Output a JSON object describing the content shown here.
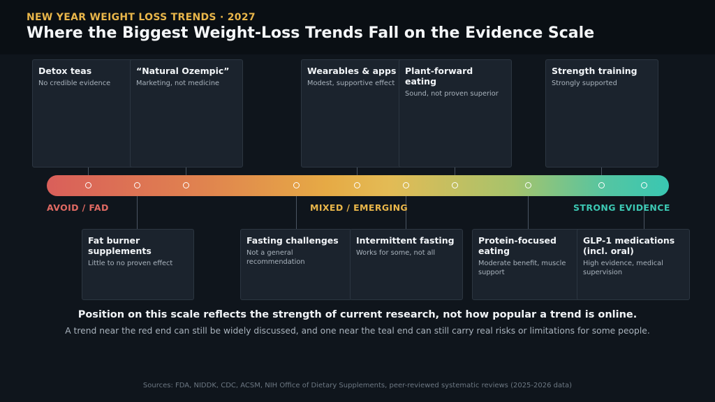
{
  "header": {
    "eyebrow": "NEW YEAR WEIGHT LOSS TRENDS · 2027",
    "title": "Where the Biggest Weight-Loss Trends Fall on the Evidence Scale"
  },
  "scale": {
    "labels": {
      "low": "AVOID / FAD",
      "mid": "MIXED / EMERGING",
      "high": "STRONG EVIDENCE"
    },
    "colors": {
      "low": "#d95f5a",
      "mid": "#e6aa45",
      "high": "#39c7b2"
    }
  },
  "trends": {
    "detox_teas": {
      "title": "Detox teas",
      "note": "No credible evidence"
    },
    "fat_burners": {
      "title": "Fat burner supplements",
      "note": "Little to no proven effect"
    },
    "natural_ozempic": {
      "title": "“Natural Ozempic”",
      "note": "Marketing, not medicine"
    },
    "fasting_challenges": {
      "title": "Fasting challenges",
      "note": "Not a general recommendation"
    },
    "wearables": {
      "title": "Wearables & apps",
      "note": "Modest, supportive effect"
    },
    "intermittent_fasting": {
      "title": "Intermittent fasting",
      "note": "Works for some, not all"
    },
    "plant_forward": {
      "title": "Plant-forward eating",
      "note": "Sound, not proven superior"
    },
    "protein_focused": {
      "title": "Protein-focused eating",
      "note": "Moderate benefit, muscle support"
    },
    "strength_training": {
      "title": "Strength training",
      "note": "Strongly supported"
    },
    "glp1": {
      "title": "GLP-1 medications (incl. oral)",
      "note": "High evidence, medical supervision"
    }
  },
  "caption": {
    "main": "Position on this scale reflects the strength of current research, not how popular a trend is online.",
    "sub": "A trend near the red end can still be widely discussed, and one near the teal end can still carry real risks or limitations for some people."
  },
  "sources": "Sources: FDA, NIDDK, CDC, ACSM, NIH Office of Dietary Supplements, peer-reviewed systematic reviews (2025-2026 data)"
}
